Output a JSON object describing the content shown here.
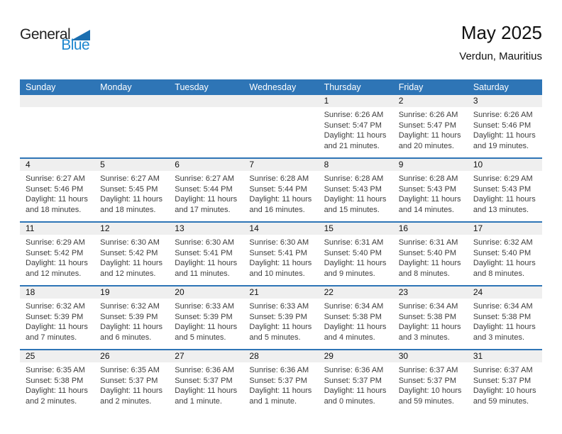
{
  "logo": {
    "word1": "General",
    "word2": "Blue"
  },
  "header": {
    "title": "May 2025",
    "subtitle": "Verdun, Mauritius"
  },
  "colors": {
    "header_bg": "#2E75B6",
    "band_bg": "#EFEFEF",
    "row_border": "#2E75B6",
    "logo_blue": "#1D87CF",
    "triangle_blue": "#1C6FB0"
  },
  "weekdays": [
    "Sunday",
    "Monday",
    "Tuesday",
    "Wednesday",
    "Thursday",
    "Friday",
    "Saturday"
  ],
  "weeks": [
    [
      {
        "day": "",
        "lines": []
      },
      {
        "day": "",
        "lines": []
      },
      {
        "day": "",
        "lines": []
      },
      {
        "day": "",
        "lines": []
      },
      {
        "day": "1",
        "lines": [
          "Sunrise: 6:26 AM",
          "Sunset: 5:47 PM",
          "Daylight: 11 hours",
          "and 21 minutes."
        ]
      },
      {
        "day": "2",
        "lines": [
          "Sunrise: 6:26 AM",
          "Sunset: 5:47 PM",
          "Daylight: 11 hours",
          "and 20 minutes."
        ]
      },
      {
        "day": "3",
        "lines": [
          "Sunrise: 6:26 AM",
          "Sunset: 5:46 PM",
          "Daylight: 11 hours",
          "and 19 minutes."
        ]
      }
    ],
    [
      {
        "day": "4",
        "lines": [
          "Sunrise: 6:27 AM",
          "Sunset: 5:46 PM",
          "Daylight: 11 hours",
          "and 18 minutes."
        ]
      },
      {
        "day": "5",
        "lines": [
          "Sunrise: 6:27 AM",
          "Sunset: 5:45 PM",
          "Daylight: 11 hours",
          "and 18 minutes."
        ]
      },
      {
        "day": "6",
        "lines": [
          "Sunrise: 6:27 AM",
          "Sunset: 5:44 PM",
          "Daylight: 11 hours",
          "and 17 minutes."
        ]
      },
      {
        "day": "7",
        "lines": [
          "Sunrise: 6:28 AM",
          "Sunset: 5:44 PM",
          "Daylight: 11 hours",
          "and 16 minutes."
        ]
      },
      {
        "day": "8",
        "lines": [
          "Sunrise: 6:28 AM",
          "Sunset: 5:43 PM",
          "Daylight: 11 hours",
          "and 15 minutes."
        ]
      },
      {
        "day": "9",
        "lines": [
          "Sunrise: 6:28 AM",
          "Sunset: 5:43 PM",
          "Daylight: 11 hours",
          "and 14 minutes."
        ]
      },
      {
        "day": "10",
        "lines": [
          "Sunrise: 6:29 AM",
          "Sunset: 5:43 PM",
          "Daylight: 11 hours",
          "and 13 minutes."
        ]
      }
    ],
    [
      {
        "day": "11",
        "lines": [
          "Sunrise: 6:29 AM",
          "Sunset: 5:42 PM",
          "Daylight: 11 hours",
          "and 12 minutes."
        ]
      },
      {
        "day": "12",
        "lines": [
          "Sunrise: 6:30 AM",
          "Sunset: 5:42 PM",
          "Daylight: 11 hours",
          "and 12 minutes."
        ]
      },
      {
        "day": "13",
        "lines": [
          "Sunrise: 6:30 AM",
          "Sunset: 5:41 PM",
          "Daylight: 11 hours",
          "and 11 minutes."
        ]
      },
      {
        "day": "14",
        "lines": [
          "Sunrise: 6:30 AM",
          "Sunset: 5:41 PM",
          "Daylight: 11 hours",
          "and 10 minutes."
        ]
      },
      {
        "day": "15",
        "lines": [
          "Sunrise: 6:31 AM",
          "Sunset: 5:40 PM",
          "Daylight: 11 hours",
          "and 9 minutes."
        ]
      },
      {
        "day": "16",
        "lines": [
          "Sunrise: 6:31 AM",
          "Sunset: 5:40 PM",
          "Daylight: 11 hours",
          "and 8 minutes."
        ]
      },
      {
        "day": "17",
        "lines": [
          "Sunrise: 6:32 AM",
          "Sunset: 5:40 PM",
          "Daylight: 11 hours",
          "and 8 minutes."
        ]
      }
    ],
    [
      {
        "day": "18",
        "lines": [
          "Sunrise: 6:32 AM",
          "Sunset: 5:39 PM",
          "Daylight: 11 hours",
          "and 7 minutes."
        ]
      },
      {
        "day": "19",
        "lines": [
          "Sunrise: 6:32 AM",
          "Sunset: 5:39 PM",
          "Daylight: 11 hours",
          "and 6 minutes."
        ]
      },
      {
        "day": "20",
        "lines": [
          "Sunrise: 6:33 AM",
          "Sunset: 5:39 PM",
          "Daylight: 11 hours",
          "and 5 minutes."
        ]
      },
      {
        "day": "21",
        "lines": [
          "Sunrise: 6:33 AM",
          "Sunset: 5:39 PM",
          "Daylight: 11 hours",
          "and 5 minutes."
        ]
      },
      {
        "day": "22",
        "lines": [
          "Sunrise: 6:34 AM",
          "Sunset: 5:38 PM",
          "Daylight: 11 hours",
          "and 4 minutes."
        ]
      },
      {
        "day": "23",
        "lines": [
          "Sunrise: 6:34 AM",
          "Sunset: 5:38 PM",
          "Daylight: 11 hours",
          "and 3 minutes."
        ]
      },
      {
        "day": "24",
        "lines": [
          "Sunrise: 6:34 AM",
          "Sunset: 5:38 PM",
          "Daylight: 11 hours",
          "and 3 minutes."
        ]
      }
    ],
    [
      {
        "day": "25",
        "lines": [
          "Sunrise: 6:35 AM",
          "Sunset: 5:38 PM",
          "Daylight: 11 hours",
          "and 2 minutes."
        ]
      },
      {
        "day": "26",
        "lines": [
          "Sunrise: 6:35 AM",
          "Sunset: 5:37 PM",
          "Daylight: 11 hours",
          "and 2 minutes."
        ]
      },
      {
        "day": "27",
        "lines": [
          "Sunrise: 6:36 AM",
          "Sunset: 5:37 PM",
          "Daylight: 11 hours",
          "and 1 minute."
        ]
      },
      {
        "day": "28",
        "lines": [
          "Sunrise: 6:36 AM",
          "Sunset: 5:37 PM",
          "Daylight: 11 hours",
          "and 1 minute."
        ]
      },
      {
        "day": "29",
        "lines": [
          "Sunrise: 6:36 AM",
          "Sunset: 5:37 PM",
          "Daylight: 11 hours",
          "and 0 minutes."
        ]
      },
      {
        "day": "30",
        "lines": [
          "Sunrise: 6:37 AM",
          "Sunset: 5:37 PM",
          "Daylight: 10 hours",
          "and 59 minutes."
        ]
      },
      {
        "day": "31",
        "lines": [
          "Sunrise: 6:37 AM",
          "Sunset: 5:37 PM",
          "Daylight: 10 hours",
          "and 59 minutes."
        ]
      }
    ]
  ]
}
